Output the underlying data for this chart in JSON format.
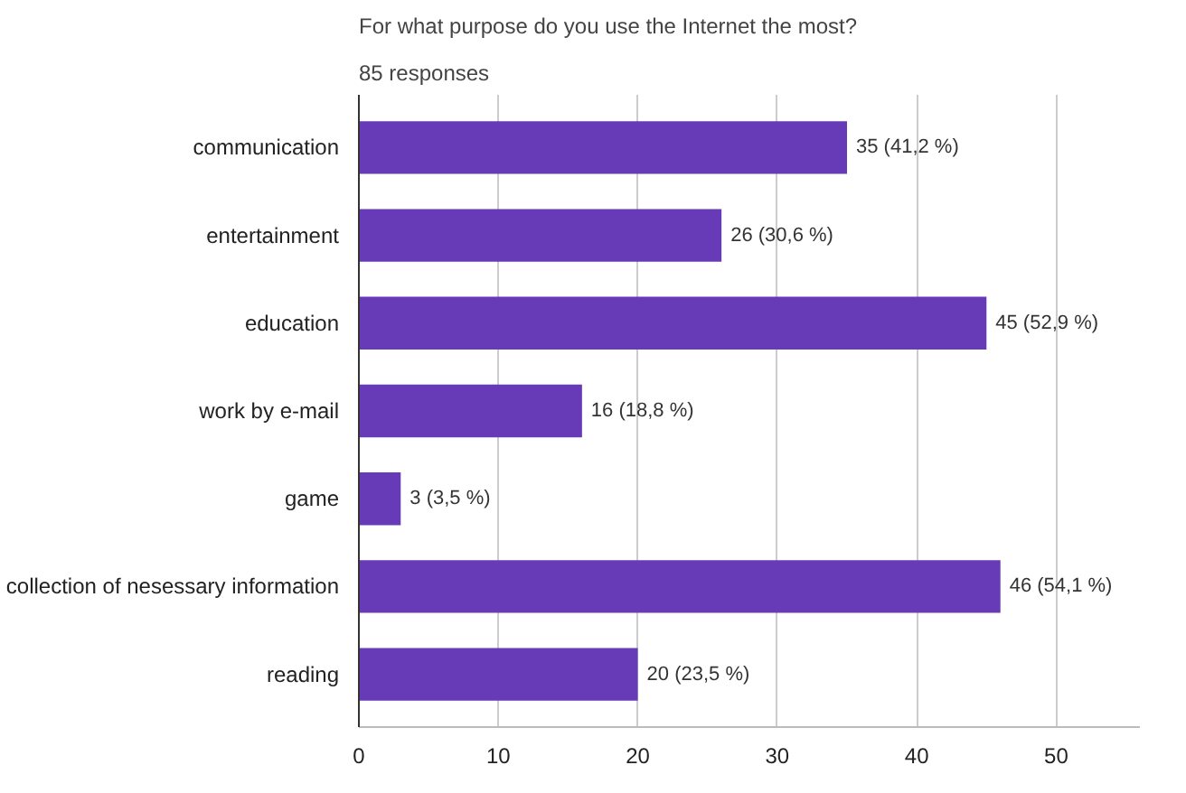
{
  "chart_data": {
    "type": "bar",
    "orientation": "horizontal",
    "title": "For what purpose do you use the Internet the most?",
    "subtitle": "85 responses",
    "categories": [
      "communication",
      "entertainment",
      "education",
      "work by e-mail",
      "game",
      "collection of nesessary information",
      "reading"
    ],
    "values": [
      35,
      26,
      45,
      16,
      3,
      46,
      20
    ],
    "value_labels": [
      "35 (41,2 %)",
      "26 (30,6 %)",
      "45 (52,9 %)",
      "16 (18,8 %)",
      "3 (3,5 %)",
      "46 (54,1 %)",
      "20 (23,5 %)"
    ],
    "color": "#673ab7",
    "xlim": [
      0,
      56
    ],
    "xticks": [
      0,
      10,
      20,
      30,
      40,
      50
    ],
    "grid": "x"
  }
}
